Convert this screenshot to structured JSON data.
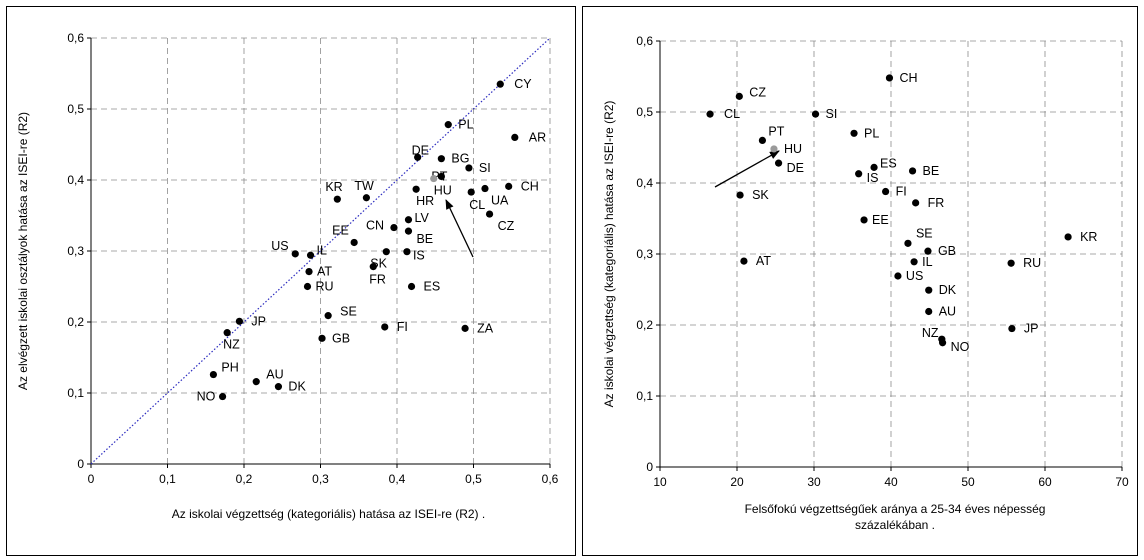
{
  "chart_data": [
    {
      "type": "scatter",
      "title": "",
      "xlabel": "Az iskolai végzettség (kategoriális) hatása az ISEI-re (R2)  .",
      "ylabel": "Az elvégzett iskolai osztályok hatása az ISEI-re (R2)",
      "xlim": [
        0,
        0.6
      ],
      "ylim": [
        0,
        0.6
      ],
      "xticks": [
        "0",
        "0,1",
        "0,2",
        "0,3",
        "0,4",
        "0,5",
        "0,6"
      ],
      "yticks": [
        "0",
        "0,1",
        "0,2",
        "0,3",
        "0,4",
        "0,5",
        "0,6"
      ],
      "grid": true,
      "reference_line": "diagonal y = x (dotted blue)",
      "highlight": "HU",
      "colors": {
        "point": "#000000",
        "highlight": "#9a9a9a",
        "reference_line": "#2b2bbf",
        "grid": "#8c8c8c"
      },
      "points": [
        {
          "label": "CY",
          "x": 0.535,
          "y": 0.535
        },
        {
          "label": "PL",
          "x": 0.467,
          "y": 0.478
        },
        {
          "label": "AR",
          "x": 0.554,
          "y": 0.46
        },
        {
          "label": "BG",
          "x": 0.458,
          "y": 0.43
        },
        {
          "label": "DE",
          "x": 0.427,
          "y": 0.432
        },
        {
          "label": "SI",
          "x": 0.494,
          "y": 0.417
        },
        {
          "label": "PT",
          "x": 0.458,
          "y": 0.405
        },
        {
          "label": "HU",
          "x": 0.448,
          "y": 0.402
        },
        {
          "label": "KR",
          "x": 0.322,
          "y": 0.373
        },
        {
          "label": "TW",
          "x": 0.36,
          "y": 0.375
        },
        {
          "label": "HR",
          "x": 0.425,
          "y": 0.387
        },
        {
          "label": "UA",
          "x": 0.515,
          "y": 0.388
        },
        {
          "label": "CL",
          "x": 0.497,
          "y": 0.383
        },
        {
          "label": "CH",
          "x": 0.546,
          "y": 0.391
        },
        {
          "label": "CZ",
          "x": 0.521,
          "y": 0.352
        },
        {
          "label": "CN",
          "x": 0.396,
          "y": 0.333
        },
        {
          "label": "LV",
          "x": 0.415,
          "y": 0.344
        },
        {
          "label": "BE",
          "x": 0.415,
          "y": 0.328
        },
        {
          "label": "EE",
          "x": 0.344,
          "y": 0.312
        },
        {
          "label": "US",
          "x": 0.267,
          "y": 0.296
        },
        {
          "label": "IL",
          "x": 0.287,
          "y": 0.294
        },
        {
          "label": "IS",
          "x": 0.413,
          "y": 0.299
        },
        {
          "label": "SK",
          "x": 0.386,
          "y": 0.299
        },
        {
          "label": "FR",
          "x": 0.369,
          "y": 0.278
        },
        {
          "label": "AT",
          "x": 0.285,
          "y": 0.271
        },
        {
          "label": "RU",
          "x": 0.283,
          "y": 0.25
        },
        {
          "label": "ES",
          "x": 0.419,
          "y": 0.25
        },
        {
          "label": "SE",
          "x": 0.31,
          "y": 0.209
        },
        {
          "label": "FI",
          "x": 0.384,
          "y": 0.193
        },
        {
          "label": "ZA",
          "x": 0.489,
          "y": 0.191
        },
        {
          "label": "JP",
          "x": 0.194,
          "y": 0.201
        },
        {
          "label": "NZ",
          "x": 0.178,
          "y": 0.185
        },
        {
          "label": "GB",
          "x": 0.302,
          "y": 0.177
        },
        {
          "label": "PH",
          "x": 0.16,
          "y": 0.126
        },
        {
          "label": "AU",
          "x": 0.216,
          "y": 0.116
        },
        {
          "label": "DK",
          "x": 0.245,
          "y": 0.109
        },
        {
          "label": "NO",
          "x": 0.172,
          "y": 0.095
        }
      ]
    },
    {
      "type": "scatter",
      "title": "",
      "xlabel": "Felsőfokú végzettségűek aránya a 25-34 éves népesség",
      "xlabel_line2": "százalékában  .",
      "ylabel": "Az iskolai végzettség (kategoriális) hatása az ISEI-re (R2)",
      "xlim": [
        10,
        70
      ],
      "ylim": [
        0,
        0.6
      ],
      "xticks": [
        "10",
        "20",
        "30",
        "40",
        "50",
        "60",
        "70"
      ],
      "yticks": [
        "0",
        "0,1",
        "0,2",
        "0,3",
        "0,4",
        "0,5",
        "0,6"
      ],
      "grid": true,
      "highlight": "HU",
      "colors": {
        "point": "#000000",
        "highlight": "#9a9a9a",
        "grid": "#8c8c8c"
      },
      "points": [
        {
          "label": "CH",
          "x": 39.8,
          "y": 0.548
        },
        {
          "label": "CZ",
          "x": 20.3,
          "y": 0.522
        },
        {
          "label": "CL",
          "x": 16.5,
          "y": 0.497
        },
        {
          "label": "SI",
          "x": 30.2,
          "y": 0.497
        },
        {
          "label": "PL",
          "x": 35.2,
          "y": 0.47
        },
        {
          "label": "PT",
          "x": 23.3,
          "y": 0.46
        },
        {
          "label": "HU",
          "x": 24.8,
          "y": 0.448
        },
        {
          "label": "DE",
          "x": 25.4,
          "y": 0.428
        },
        {
          "label": "ES",
          "x": 37.8,
          "y": 0.422
        },
        {
          "label": "BE",
          "x": 42.8,
          "y": 0.417
        },
        {
          "label": "IS",
          "x": 35.8,
          "y": 0.413
        },
        {
          "label": "FI",
          "x": 39.3,
          "y": 0.388
        },
        {
          "label": "SK",
          "x": 20.4,
          "y": 0.383
        },
        {
          "label": "FR",
          "x": 43.2,
          "y": 0.372
        },
        {
          "label": "EE",
          "x": 36.5,
          "y": 0.348
        },
        {
          "label": "KR",
          "x": 63.0,
          "y": 0.324
        },
        {
          "label": "SE",
          "x": 42.2,
          "y": 0.315
        },
        {
          "label": "GB",
          "x": 44.8,
          "y": 0.304
        },
        {
          "label": "AT",
          "x": 20.9,
          "y": 0.29
        },
        {
          "label": "IL",
          "x": 43.0,
          "y": 0.289
        },
        {
          "label": "RU",
          "x": 55.6,
          "y": 0.287
        },
        {
          "label": "US",
          "x": 40.9,
          "y": 0.269
        },
        {
          "label": "DK",
          "x": 44.9,
          "y": 0.249
        },
        {
          "label": "AU",
          "x": 44.9,
          "y": 0.219
        },
        {
          "label": "JP",
          "x": 55.7,
          "y": 0.195
        },
        {
          "label": "NZ",
          "x": 46.6,
          "y": 0.18
        },
        {
          "label": "NO",
          "x": 46.7,
          "y": 0.175
        }
      ]
    }
  ]
}
